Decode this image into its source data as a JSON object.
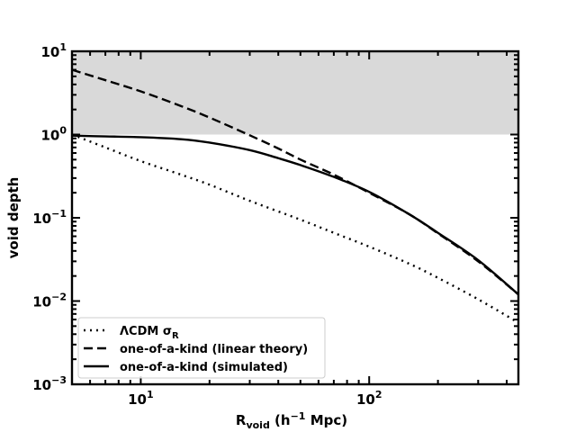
{
  "chart_data": {
    "type": "line",
    "xlabel": {
      "main": "R",
      "sub": "void",
      "rest": " (h",
      "sup": "−1",
      "end": " Mpc)"
    },
    "ylabel": "void depth",
    "xscale": "log",
    "yscale": "log",
    "xlim": [
      5,
      450
    ],
    "ylim": [
      0.001,
      10
    ],
    "x_ticks": [
      {
        "value": 10,
        "base": "10",
        "exp": "1"
      },
      {
        "value": 100,
        "base": "10",
        "exp": "2"
      }
    ],
    "y_ticks": [
      {
        "value": 0.001,
        "base": "10",
        "exp": "−3"
      },
      {
        "value": 0.01,
        "base": "10",
        "exp": "−2"
      },
      {
        "value": 0.1,
        "base": "10",
        "exp": "−1"
      },
      {
        "value": 1,
        "base": "10",
        "exp": "0"
      },
      {
        "value": 10,
        "base": "10",
        "exp": "1"
      }
    ],
    "shaded_region": {
      "y_from": 1,
      "y_to": 10,
      "color": "#d9d9d9"
    },
    "legend_position": "lower-left",
    "series": [
      {
        "name": "ΛCDM σ",
        "name_sub": "R",
        "style": "dotted",
        "x": [
          5,
          7,
          10,
          15,
          20,
          30,
          50,
          70,
          100,
          150,
          200,
          300,
          450
        ],
        "y": [
          1.0,
          0.7,
          0.48,
          0.33,
          0.25,
          0.16,
          0.095,
          0.066,
          0.045,
          0.028,
          0.019,
          0.0105,
          0.0055
        ]
      },
      {
        "name": "one-of-a-kind (linear theory)",
        "style": "dashed",
        "x": [
          5,
          7,
          10,
          15,
          20,
          30,
          40,
          50,
          70,
          100,
          150,
          200,
          300,
          450
        ],
        "y": [
          6.0,
          4.5,
          3.3,
          2.2,
          1.6,
          0.98,
          0.68,
          0.5,
          0.33,
          0.2,
          0.11,
          0.065,
          0.03,
          0.012
        ]
      },
      {
        "name": "one-of-a-kind (simulated)",
        "style": "solid",
        "x": [
          5,
          7,
          10,
          15,
          20,
          30,
          40,
          50,
          70,
          100,
          150,
          200,
          300,
          450
        ],
        "y": [
          0.97,
          0.95,
          0.93,
          0.88,
          0.8,
          0.65,
          0.52,
          0.43,
          0.31,
          0.205,
          0.11,
          0.066,
          0.031,
          0.012
        ]
      }
    ]
  }
}
